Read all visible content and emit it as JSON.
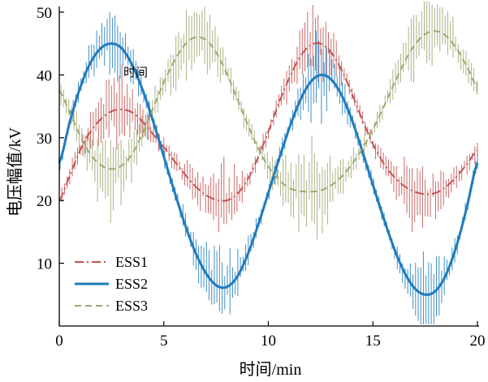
{
  "chart_data": {
    "type": "line",
    "xlabel": "时间/min",
    "ylabel": "电压幅值/kV",
    "xlim": [
      0,
      20
    ],
    "ylim": [
      0,
      50
    ],
    "x_ticks": [
      0,
      5,
      10,
      15,
      20
    ],
    "y_ticks": [
      10,
      20,
      30,
      40,
      50
    ],
    "grid": false,
    "legend_position": "lower-left",
    "x": [
      0,
      0.5,
      1,
      1.5,
      2,
      2.5,
      3,
      3.5,
      4,
      4.5,
      5,
      5.5,
      6,
      6.5,
      7,
      7.5,
      8,
      8.5,
      9,
      9.5,
      10,
      10.5,
      11,
      11.5,
      12,
      12.5,
      13,
      13.5,
      14,
      14.5,
      15,
      15.5,
      16,
      16.5,
      17,
      17.5,
      18,
      18.5,
      19,
      19.5,
      20
    ],
    "series": [
      {
        "name": "ESS1",
        "color": "#c0504d",
        "line_style": "dash-dot",
        "values": [
          20,
          24,
          28,
          31,
          33,
          34.2,
          34.5,
          34,
          32.5,
          30.5,
          28.5,
          26.3,
          24.2,
          22.3,
          20.9,
          20.1,
          20,
          21,
          23.3,
          26.8,
          31,
          35.5,
          39.5,
          42.8,
          44.7,
          45,
          43.6,
          40.8,
          37,
          32.8,
          29,
          26,
          23.8,
          22.3,
          21.4,
          21,
          21.2,
          22.2,
          23.8,
          25.8,
          28
        ],
        "measurement_spread": [
          1.5,
          1.5,
          2,
          3,
          4.5,
          6,
          6.5,
          4.5,
          2.8,
          2,
          1.5,
          1.5,
          2,
          3,
          4.5,
          6,
          6,
          3.5,
          2,
          1.5,
          1.5,
          2,
          3,
          4.5,
          6.5,
          6,
          4,
          2.2,
          1.5,
          1.5,
          1.5,
          2,
          3,
          4,
          5.5,
          6,
          4.5,
          2.8,
          2,
          1.5,
          1.5
        ]
      },
      {
        "name": "ESS2",
        "color": "#1f7bbd",
        "line_style": "solid",
        "values": [
          26,
          32.5,
          38,
          42,
          44.3,
          45,
          44.2,
          41.5,
          37.5,
          32.5,
          27,
          21.5,
          16.3,
          11.8,
          8.5,
          6.5,
          6.2,
          7.8,
          11.3,
          16,
          21.2,
          26.5,
          31.5,
          35.8,
          38.8,
          40,
          39.3,
          36.8,
          32.8,
          27.8,
          22.5,
          17.3,
          12.5,
          8.6,
          6,
          5,
          5.6,
          8.2,
          12.8,
          19,
          26
        ],
        "measurement_spread": [
          1.5,
          1.5,
          2,
          3,
          4.5,
          6.5,
          5,
          3,
          2,
          1.5,
          1.5,
          1.5,
          2,
          3,
          4.5,
          6,
          6,
          4,
          2.5,
          1.8,
          1.5,
          1.5,
          2,
          3,
          5,
          6.5,
          5,
          3,
          2,
          1.5,
          1.5,
          1.5,
          2,
          3,
          4.5,
          6,
          5.5,
          3,
          2,
          1.5,
          1.5
        ]
      },
      {
        "name": "ESS3",
        "color": "#9ea56e",
        "line_style": "dashed",
        "values": [
          37.5,
          34,
          30.3,
          27.3,
          25.6,
          25,
          25.6,
          27.5,
          30.8,
          34.8,
          38.8,
          42.2,
          44.8,
          46,
          45.6,
          43.6,
          40.3,
          36.3,
          32.2,
          28.4,
          25.4,
          23.3,
          22,
          21.5,
          21.4,
          21.6,
          22.4,
          23.8,
          25.8,
          28.3,
          31.3,
          34.8,
          38.5,
          42,
          44.8,
          46.5,
          47,
          46.2,
          44.2,
          41.3,
          38
        ],
        "measurement_spread": [
          2,
          2,
          3,
          4,
          5.5,
          7,
          5.5,
          3.5,
          2.5,
          2.5,
          3.5,
          5,
          6,
          6,
          5,
          3.5,
          2.5,
          2,
          1.5,
          2,
          2.5,
          3.5,
          5,
          6.5,
          7,
          6,
          4.5,
          3,
          2,
          1.5,
          1.5,
          2,
          2.5,
          4,
          5.5,
          6,
          6,
          4.5,
          3,
          2,
          2
        ]
      }
    ],
    "annotations": [
      {
        "text": "时间"
      }
    ]
  }
}
